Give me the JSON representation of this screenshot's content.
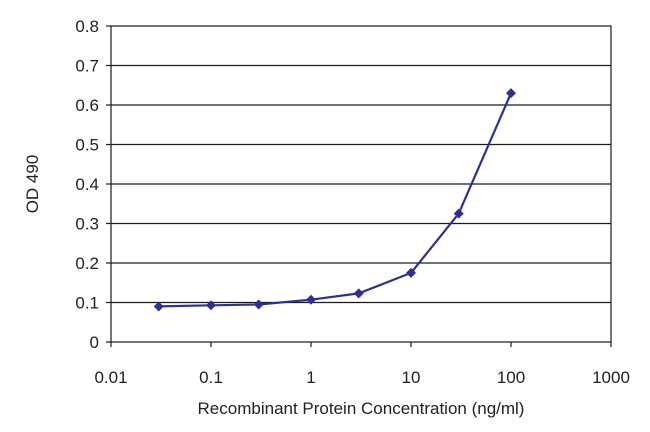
{
  "chart_data": {
    "type": "line",
    "title": "",
    "xlabel": "Recombinant Protein Concentration (ng/ml)",
    "ylabel": "OD 490",
    "xscale": "log",
    "xlim": [
      0.01,
      1000
    ],
    "ylim": [
      0,
      0.8
    ],
    "grid": "horizontal",
    "legend": "none",
    "x_ticks": [
      "0.01",
      "0.1",
      "1",
      "10",
      "100",
      "1000"
    ],
    "x_tick_values": [
      0.01,
      0.1,
      1,
      10,
      100,
      1000
    ],
    "y_ticks": [
      "0",
      "0.1",
      "0.2",
      "0.3",
      "0.4",
      "0.5",
      "0.6",
      "0.7",
      "0.8"
    ],
    "y_tick_values": [
      0,
      0.1,
      0.2,
      0.3,
      0.4,
      0.5,
      0.6,
      0.7,
      0.8
    ],
    "series": [
      {
        "x": [
          0.03,
          0.1,
          0.3,
          1,
          3,
          10,
          30,
          100
        ],
        "y": [
          0.09,
          0.093,
          0.095,
          0.107,
          0.123,
          0.175,
          0.325,
          0.63
        ],
        "color": "#2e3192"
      }
    ]
  }
}
